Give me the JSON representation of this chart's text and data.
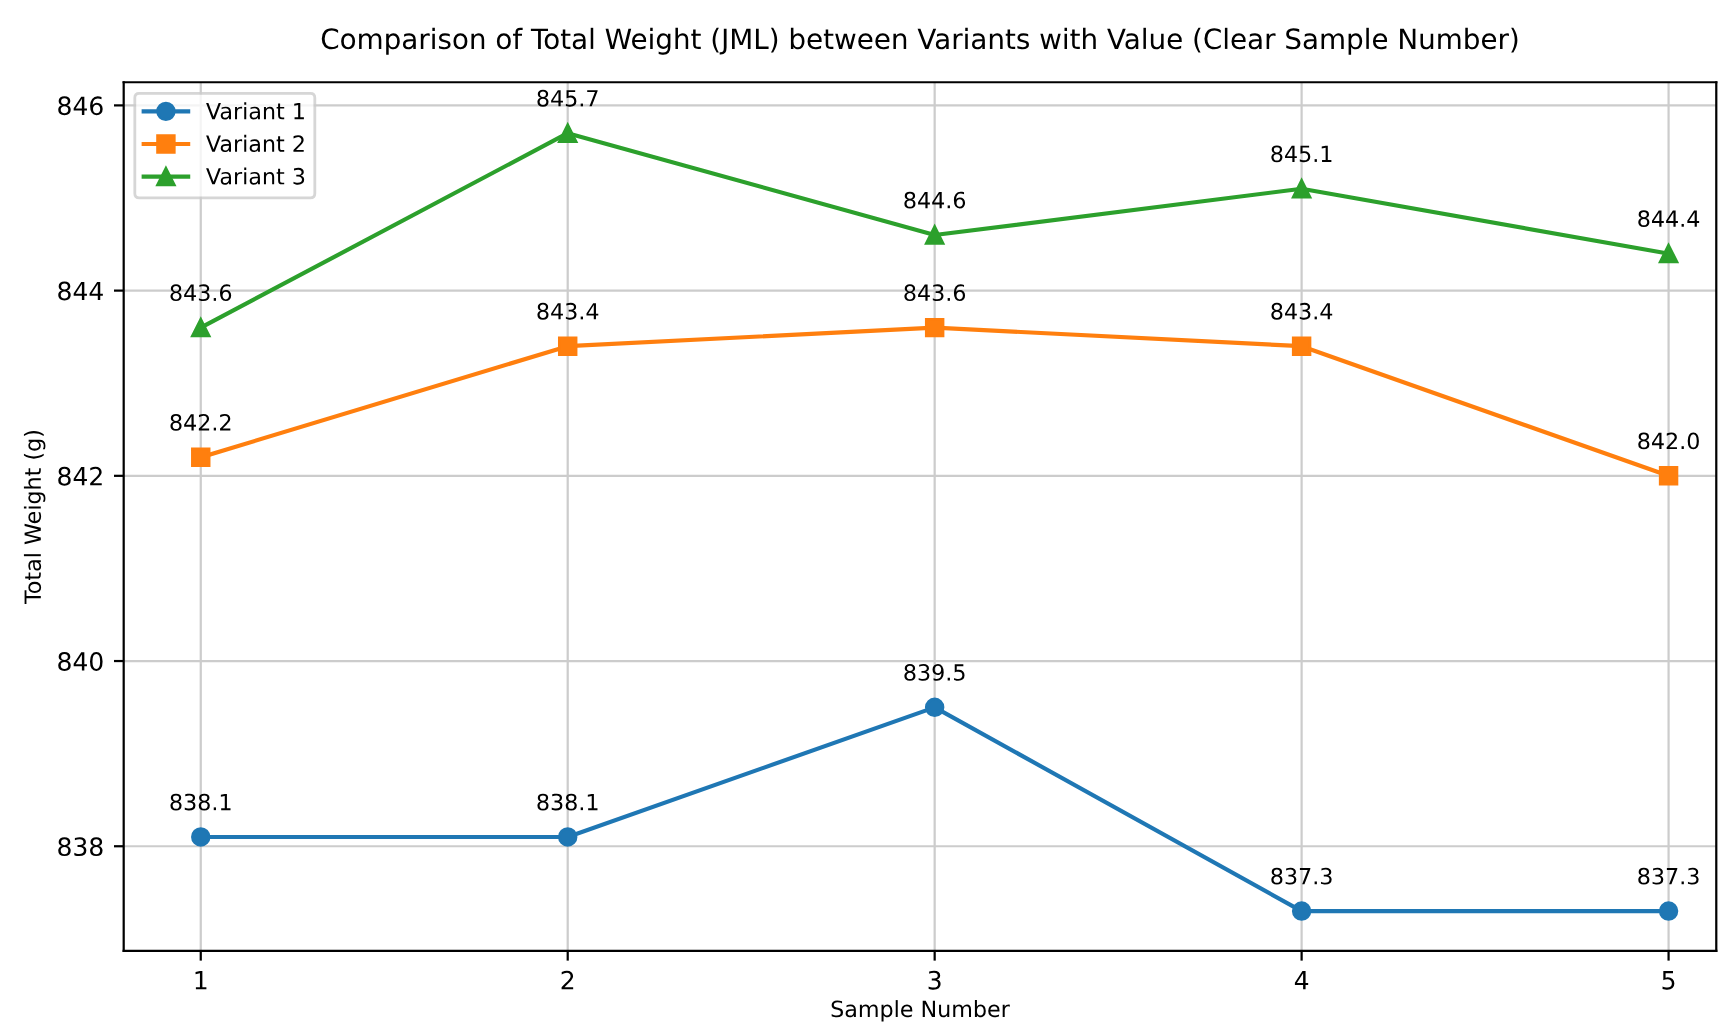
{
  "chart_data": {
    "type": "line",
    "title": "Comparison of Total Weight (JML) between Variants with Value (Clear Sample Number)",
    "xlabel": "Sample Number",
    "ylabel": "Total Weight (g)",
    "x": [
      1,
      2,
      3,
      4,
      5
    ],
    "series": [
      {
        "name": "Variant 1",
        "color": "#1f77b4",
        "marker": "circle",
        "values": [
          838.1,
          838.1,
          839.5,
          837.3,
          837.3
        ],
        "value_labels": [
          "838.1",
          "838.1",
          "839.5",
          "837.3",
          "837.3"
        ]
      },
      {
        "name": "Variant 2",
        "color": "#ff7f0e",
        "marker": "square",
        "values": [
          842.2,
          843.4,
          843.6,
          843.4,
          842.0
        ],
        "value_labels": [
          "842.2",
          "843.4",
          "843.6",
          "843.4",
          "842.0"
        ]
      },
      {
        "name": "Variant 3",
        "color": "#2ca02c",
        "marker": "triangle",
        "values": [
          843.6,
          845.7,
          844.6,
          845.1,
          844.4
        ],
        "value_labels": [
          "843.6",
          "845.7",
          "844.6",
          "845.1",
          "844.4"
        ]
      }
    ],
    "xlim": [
      0.79,
      5.13
    ],
    "xticks": [
      1,
      2,
      3,
      4,
      5
    ],
    "ylim": [
      836.87,
      846.25
    ],
    "yticks": [
      838,
      840,
      842,
      844,
      846
    ],
    "grid": true,
    "legend": "top left",
    "line_style": "solid"
  }
}
